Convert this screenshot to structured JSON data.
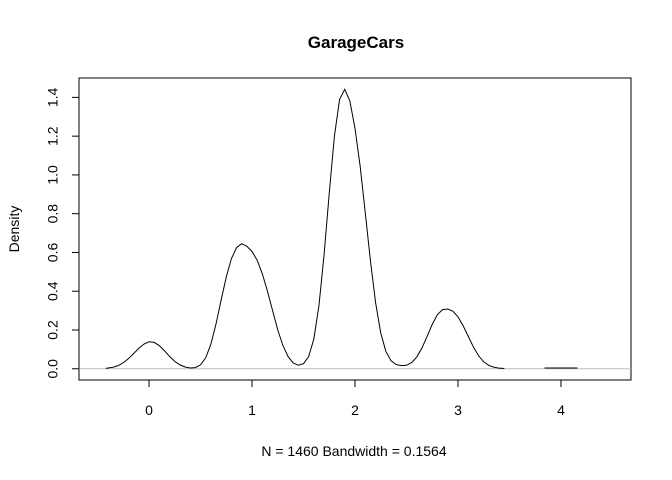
{
  "chart_data": {
    "type": "line",
    "title": "GarageCars",
    "xlabel": "N = 1460   Bandwidth = 0.1564",
    "ylabel": "Density",
    "xlim": [
      -0.68,
      4.68
    ],
    "ylim": [
      -0.058,
      1.5
    ],
    "x_ticks": [
      0,
      1,
      2,
      3,
      4
    ],
    "x_tick_labels": [
      "0",
      "1",
      "2",
      "3",
      "4"
    ],
    "y_ticks": [
      0.0,
      0.2,
      0.4,
      0.6,
      0.8,
      1.0,
      1.2,
      1.4
    ],
    "y_tick_labels": [
      "0.0",
      "0.2",
      "0.4",
      "0.6",
      "0.8",
      "1.0",
      "1.2",
      "1.4"
    ],
    "grid": false,
    "baseline": 0,
    "series": [
      {
        "values_description_free": true,
        "x": [
          -0.42,
          -0.35,
          -0.3,
          -0.25,
          -0.2,
          -0.15,
          -0.1,
          -0.05,
          0,
          0.05,
          0.1,
          0.15,
          0.2,
          0.25,
          0.3,
          0.35,
          0.4,
          0.45,
          0.5,
          0.55,
          0.6,
          0.65,
          0.7,
          0.75,
          0.8,
          0.85,
          0.9,
          0.95,
          1,
          1.05,
          1.1,
          1.15,
          1.2,
          1.25,
          1.3,
          1.35,
          1.4,
          1.45,
          1.5,
          1.55,
          1.6,
          1.65,
          1.7,
          1.75,
          1.8,
          1.85,
          1.9,
          1.95,
          2,
          2.05,
          2.1,
          2.15,
          2.2,
          2.25,
          2.3,
          2.35,
          2.4,
          2.45,
          2.5,
          2.55,
          2.6,
          2.65,
          2.7,
          2.75,
          2.8,
          2.85,
          2.9,
          2.95,
          3,
          3.05,
          3.1,
          3.15,
          3.2,
          3.25,
          3.3,
          3.35,
          3.4,
          3.45
        ],
        "y": [
          0.002,
          0.008,
          0.016,
          0.031,
          0.052,
          0.078,
          0.105,
          0.127,
          0.139,
          0.136,
          0.119,
          0.093,
          0.063,
          0.038,
          0.02,
          0.009,
          0.004,
          0.006,
          0.02,
          0.056,
          0.126,
          0.23,
          0.354,
          0.474,
          0.568,
          0.625,
          0.645,
          0.632,
          0.605,
          0.56,
          0.49,
          0.4,
          0.3,
          0.2,
          0.12,
          0.063,
          0.03,
          0.018,
          0.026,
          0.063,
          0.153,
          0.326,
          0.589,
          0.906,
          1.199,
          1.389,
          1.442,
          1.382,
          1.24,
          1.045,
          0.803,
          0.556,
          0.341,
          0.184,
          0.089,
          0.041,
          0.022,
          0.016,
          0.018,
          0.032,
          0.061,
          0.107,
          0.167,
          0.229,
          0.279,
          0.305,
          0.308,
          0.297,
          0.268,
          0.222,
          0.167,
          0.112,
          0.067,
          0.036,
          0.017,
          0.008,
          0.003,
          0.001
        ]
      },
      {
        "x": [
          3.84,
          4.0,
          4.16
        ],
        "y": [
          0.004,
          0.004,
          0.004
        ]
      }
    ]
  }
}
